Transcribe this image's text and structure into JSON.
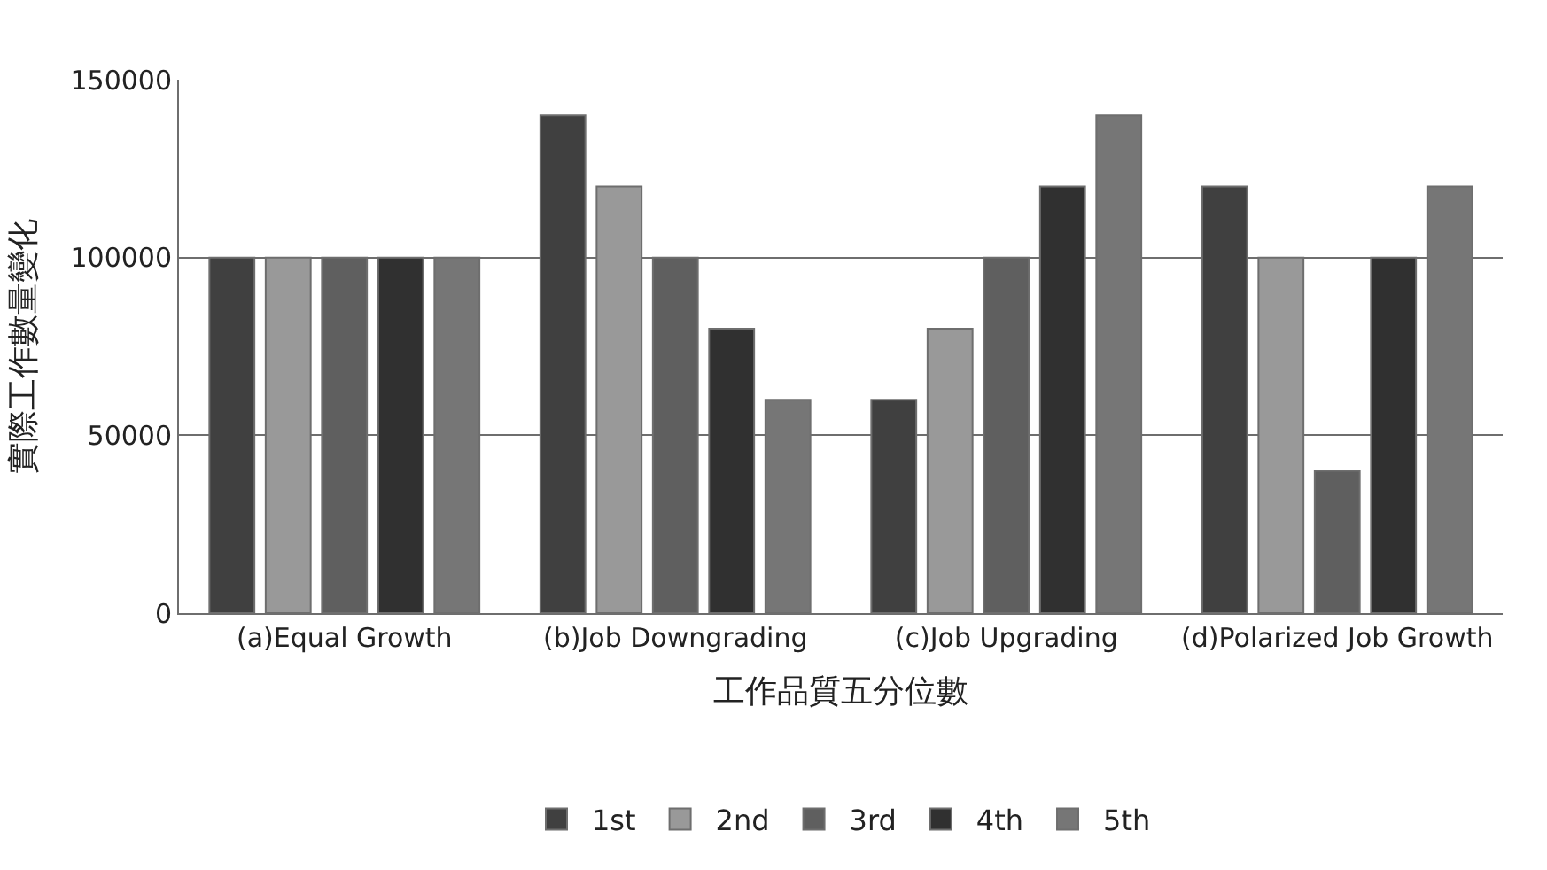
{
  "chart_data": {
    "type": "bar",
    "xlabel": "工作品質五分位數",
    "ylabel": "實際工作數量變化",
    "categories": [
      "(a)Equal Growth",
      "(b)Job Downgrading",
      "(c)Job Upgrading",
      "(d)Polarized Job Growth"
    ],
    "series": [
      {
        "name": "1st",
        "color": "#404040",
        "values": [
          100000,
          140000,
          60000,
          120000
        ]
      },
      {
        "name": "2nd",
        "color": "#999999",
        "values": [
          100000,
          120000,
          80000,
          100000
        ]
      },
      {
        "name": "3rd",
        "color": "#5f5f5f",
        "values": [
          100000,
          100000,
          100000,
          40000
        ]
      },
      {
        "name": "4th",
        "color": "#303030",
        "values": [
          100000,
          80000,
          120000,
          100000
        ]
      },
      {
        "name": "5th",
        "color": "#767676",
        "values": [
          100000,
          60000,
          140000,
          120000
        ]
      }
    ],
    "ylim": [
      0,
      150000
    ],
    "yticks": [
      0,
      50000,
      100000,
      150000
    ],
    "grid": "y",
    "legend": "bottom"
  }
}
